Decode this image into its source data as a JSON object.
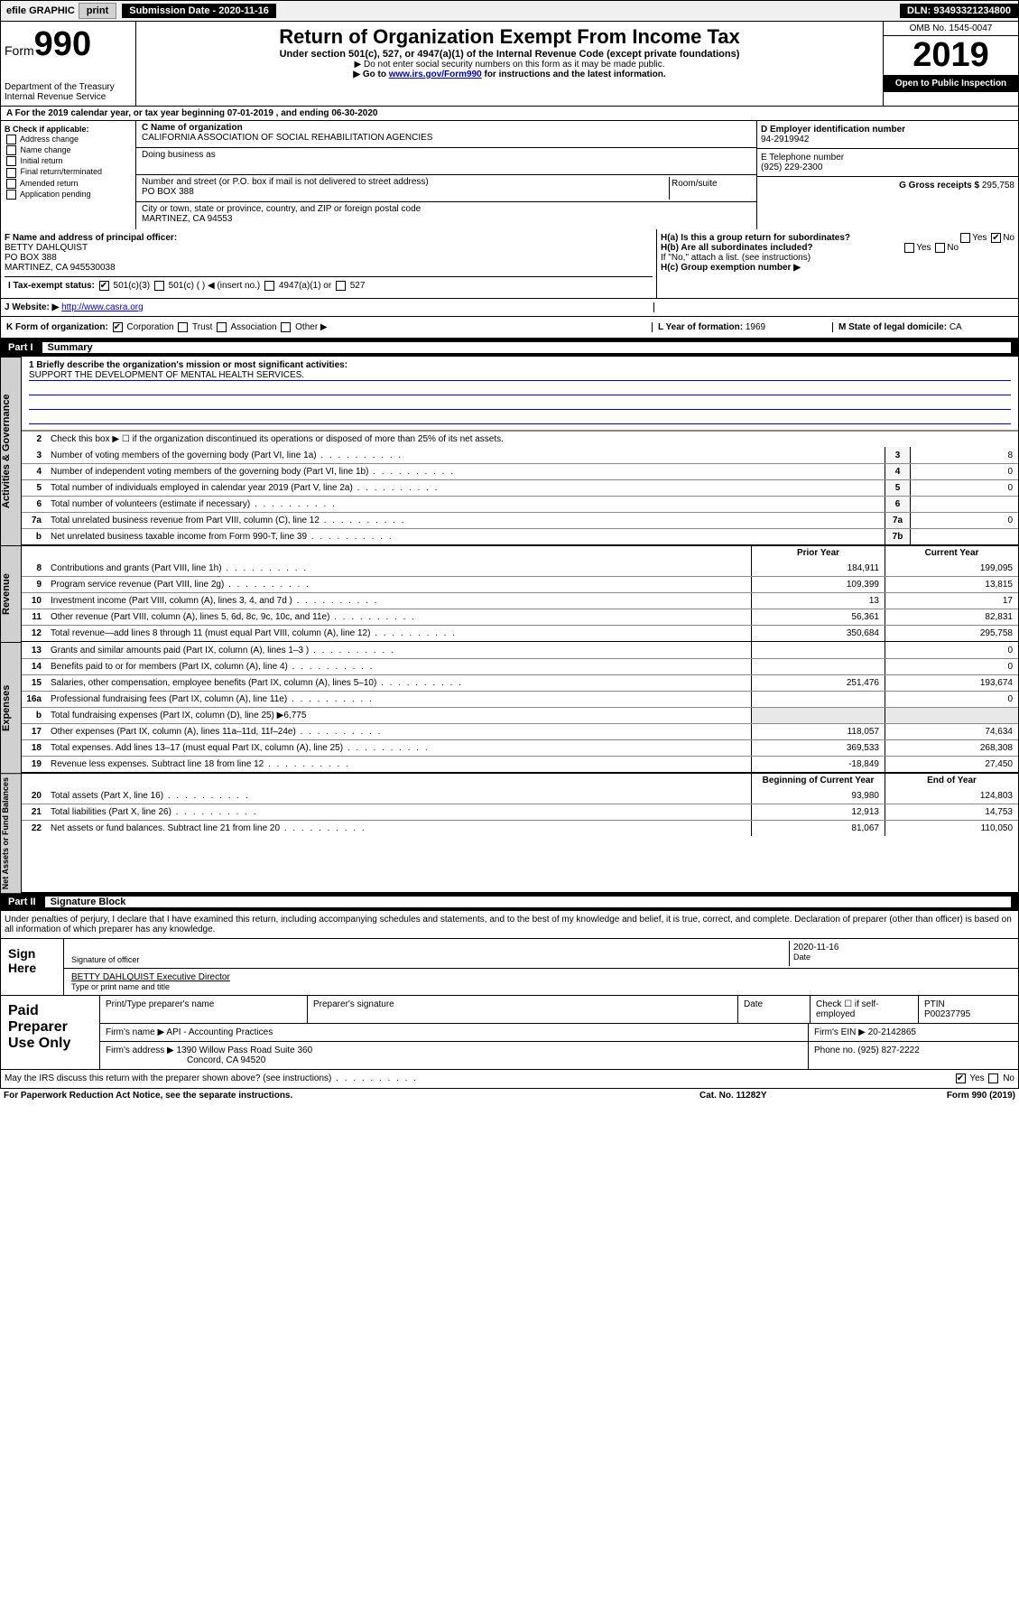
{
  "colors": {
    "black": "#000000",
    "white": "#ffffff",
    "link": "#0000cc",
    "gray_bg": "#d0d0d0",
    "light_gray": "#f0f0f0"
  },
  "topbar": {
    "efile": "efile GRAPHIC",
    "print": "print",
    "submission_label": "Submission Date - 2020-11-16",
    "dln": "DLN: 93493321234800"
  },
  "header": {
    "form_prefix": "Form",
    "form_number": "990",
    "dept": "Department of the Treasury",
    "irs": "Internal Revenue Service",
    "title": "Return of Organization Exempt From Income Tax",
    "sub": "Under section 501(c), 527, or 4947(a)(1) of the Internal Revenue Code (except private foundations)",
    "note1": "▶ Do not enter social security numbers on this form as it may be made public.",
    "note2_pre": "▶ Go to ",
    "note2_link": "www.irs.gov/Form990",
    "note2_post": " for instructions and the latest information.",
    "omb": "OMB No. 1545-0047",
    "year": "2019",
    "open": "Open to Public Inspection"
  },
  "section_a": "A For the 2019 calendar year, or tax year beginning 07-01-2019   , and ending 06-30-2020",
  "section_b": {
    "label": "B Check if applicable:",
    "opts": [
      "Address change",
      "Name change",
      "Initial return",
      "Final return/terminated",
      "Amended return",
      "Application pending"
    ]
  },
  "section_c": {
    "name_label": "C Name of organization",
    "name": "CALIFORNIA ASSOCIATION OF SOCIAL REHABILITATION AGENCIES",
    "dba_label": "Doing business as",
    "addr_label": "Number and street (or P.O. box if mail is not delivered to street address)",
    "room_label": "Room/suite",
    "addr": "PO BOX 388",
    "city_label": "City or town, state or province, country, and ZIP or foreign postal code",
    "city": "MARTINEZ, CA  94553"
  },
  "section_d": {
    "ein_label": "D Employer identification number",
    "ein": "94-2919942",
    "phone_label": "E Telephone number",
    "phone": "(925) 229-2300",
    "gross_label": "G Gross receipts $",
    "gross": "295,758"
  },
  "section_f": {
    "label": "F  Name and address of principal officer:",
    "name": "BETTY DAHLQUIST",
    "addr1": "PO BOX 388",
    "addr2": "MARTINEZ, CA  945530038"
  },
  "section_h": {
    "a": "H(a)  Is this a group return for subordinates?",
    "b": "H(b)  Are all subordinates included?",
    "b_note": "If \"No,\" attach a list. (see instructions)",
    "c": "H(c)  Group exemption number ▶",
    "yes": "Yes",
    "no": "No"
  },
  "tax_status": {
    "label": "I  Tax-exempt status:",
    "o1": "501(c)(3)",
    "o2": "501(c) (  ) ◀ (insert no.)",
    "o3": "4947(a)(1) or",
    "o4": "527"
  },
  "website": {
    "label": "J  Website: ▶",
    "url": "http://www.casra.org"
  },
  "k_row": {
    "label": "K Form of organization:",
    "o1": "Corporation",
    "o2": "Trust",
    "o3": "Association",
    "o4": "Other ▶",
    "l_label": "L Year of formation:",
    "l_val": "1969",
    "m_label": "M State of legal domicile:",
    "m_val": "CA"
  },
  "part1": {
    "label": "Part I",
    "title": "Summary",
    "vlabel1": "Activities & Governance",
    "q1_label": "1  Briefly describe the organization's mission or most significant activities:",
    "q1_text": "SUPPORT THE DEVELOPMENT OF MENTAL HEALTH SERVICES.",
    "q2": "Check this box ▶ ☐ if the organization discontinued its operations or disposed of more than 25% of its net assets.",
    "lines_gov": [
      {
        "n": "3",
        "d": "Number of voting members of the governing body (Part VI, line 1a)",
        "box": "3",
        "v": "8"
      },
      {
        "n": "4",
        "d": "Number of independent voting members of the governing body (Part VI, line 1b)",
        "box": "4",
        "v": "0"
      },
      {
        "n": "5",
        "d": "Total number of individuals employed in calendar year 2019 (Part V, line 2a)",
        "box": "5",
        "v": "0"
      },
      {
        "n": "6",
        "d": "Total number of volunteers (estimate if necessary)",
        "box": "6",
        "v": ""
      },
      {
        "n": "7a",
        "d": "Total unrelated business revenue from Part VIII, column (C), line 12",
        "box": "7a",
        "v": "0"
      },
      {
        "n": "b",
        "d": "Net unrelated business taxable income from Form 990-T, line 39",
        "box": "7b",
        "v": ""
      }
    ],
    "head_prior": "Prior Year",
    "head_current": "Current Year",
    "vlabel2": "Revenue",
    "lines_rev": [
      {
        "n": "8",
        "d": "Contributions and grants (Part VIII, line 1h)",
        "p": "184,911",
        "c": "199,095"
      },
      {
        "n": "9",
        "d": "Program service revenue (Part VIII, line 2g)",
        "p": "109,399",
        "c": "13,815"
      },
      {
        "n": "10",
        "d": "Investment income (Part VIII, column (A), lines 3, 4, and 7d )",
        "p": "13",
        "c": "17"
      },
      {
        "n": "11",
        "d": "Other revenue (Part VIII, column (A), lines 5, 6d, 8c, 9c, 10c, and 11e)",
        "p": "56,361",
        "c": "82,831"
      },
      {
        "n": "12",
        "d": "Total revenue—add lines 8 through 11 (must equal Part VIII, column (A), line 12)",
        "p": "350,684",
        "c": "295,758"
      }
    ],
    "vlabel3": "Expenses",
    "lines_exp": [
      {
        "n": "13",
        "d": "Grants and similar amounts paid (Part IX, column (A), lines 1–3 )",
        "p": "",
        "c": "0"
      },
      {
        "n": "14",
        "d": "Benefits paid to or for members (Part IX, column (A), line 4)",
        "p": "",
        "c": "0"
      },
      {
        "n": "15",
        "d": "Salaries, other compensation, employee benefits (Part IX, column (A), lines 5–10)",
        "p": "251,476",
        "c": "193,674"
      },
      {
        "n": "16a",
        "d": "Professional fundraising fees (Part IX, column (A), line 11e)",
        "p": "",
        "c": "0"
      },
      {
        "n": "b",
        "d": "Total fundraising expenses (Part IX, column (D), line 25) ▶6,775",
        "p": "",
        "c": "",
        "noval": true
      },
      {
        "n": "17",
        "d": "Other expenses (Part IX, column (A), lines 11a–11d, 11f–24e)",
        "p": "118,057",
        "c": "74,634"
      },
      {
        "n": "18",
        "d": "Total expenses. Add lines 13–17 (must equal Part IX, column (A), line 25)",
        "p": "369,533",
        "c": "268,308"
      },
      {
        "n": "19",
        "d": "Revenue less expenses. Subtract line 18 from line 12",
        "p": "-18,849",
        "c": "27,450"
      }
    ],
    "head_begin": "Beginning of Current Year",
    "head_end": "End of Year",
    "vlabel4": "Net Assets or Fund Balances",
    "lines_net": [
      {
        "n": "20",
        "d": "Total assets (Part X, line 16)",
        "p": "93,980",
        "c": "124,803"
      },
      {
        "n": "21",
        "d": "Total liabilities (Part X, line 26)",
        "p": "12,913",
        "c": "14,753"
      },
      {
        "n": "22",
        "d": "Net assets or fund balances. Subtract line 21 from line 20",
        "p": "81,067",
        "c": "110,050"
      }
    ]
  },
  "part2": {
    "label": "Part II",
    "title": "Signature Block",
    "penalty": "Under penalties of perjury, I declare that I have examined this return, including accompanying schedules and statements, and to the best of my knowledge and belief, it is true, correct, and complete. Declaration of preparer (other than officer) is based on all information of which preparer has any knowledge."
  },
  "sign": {
    "label": "Sign Here",
    "sig_officer": "Signature of officer",
    "date": "2020-11-16",
    "date_label": "Date",
    "name": "BETTY DAHLQUIST Executive Director",
    "name_label": "Type or print name and title"
  },
  "prep": {
    "label": "Paid Preparer Use Only",
    "h1": "Print/Type preparer's name",
    "h2": "Preparer's signature",
    "h3": "Date",
    "h4_a": "Check ☐ if self-employed",
    "h5": "PTIN",
    "ptin": "P00237795",
    "firm_label": "Firm's name    ▶",
    "firm": "API - Accounting Practices",
    "ein_label": "Firm's EIN ▶",
    "ein": "20-2142865",
    "addr_label": "Firm's address ▶",
    "addr": "1390 Willow Pass Road Suite 360",
    "city": "Concord, CA  94520",
    "phone_label": "Phone no.",
    "phone": "(925) 827-2222"
  },
  "discuss": {
    "q": "May the IRS discuss this return with the preparer shown above? (see instructions)",
    "yes": "Yes",
    "no": "No"
  },
  "footer": {
    "paperwork": "For Paperwork Reduction Act Notice, see the separate instructions.",
    "cat": "Cat. No. 11282Y",
    "form": "Form 990 (2019)"
  }
}
